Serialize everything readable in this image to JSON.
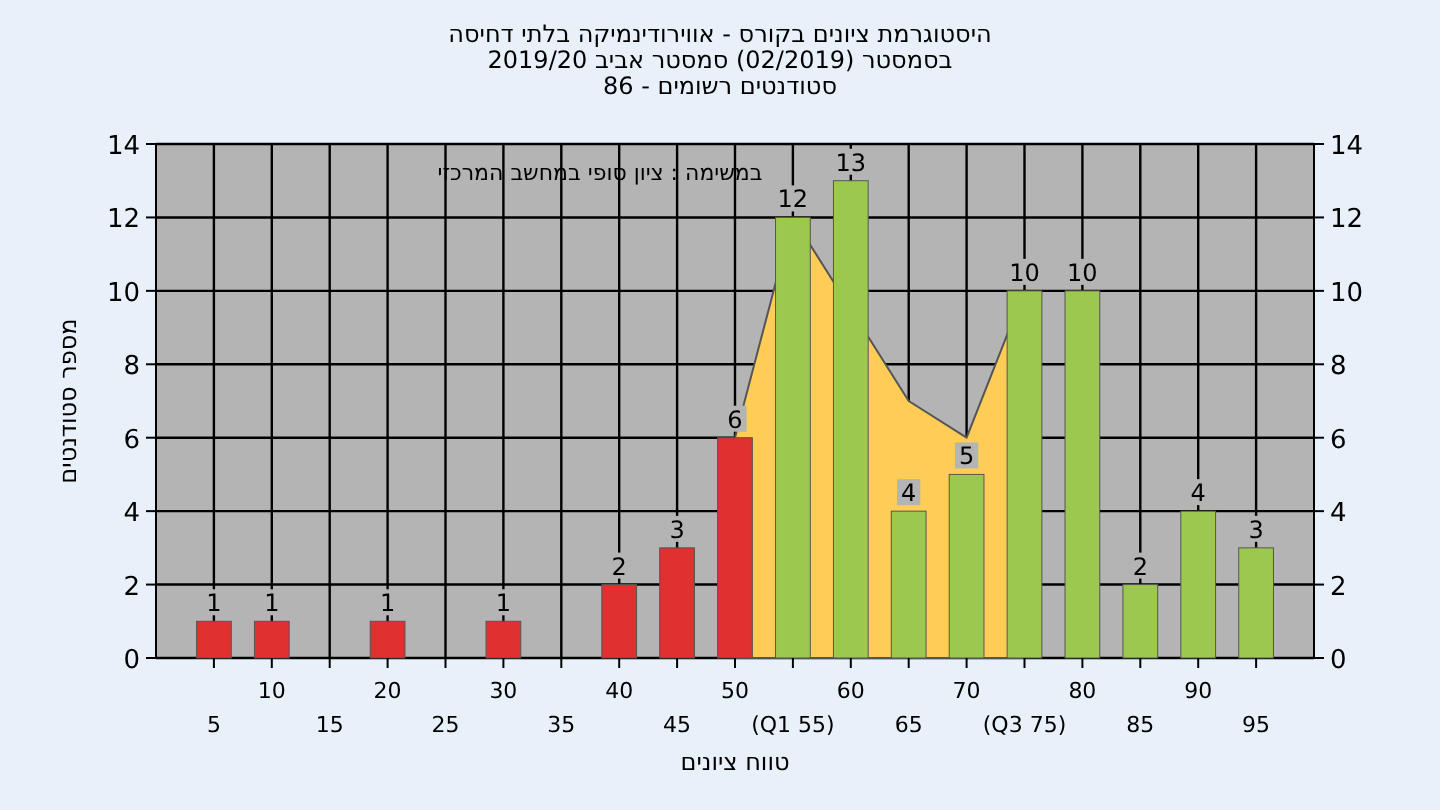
{
  "chart_data": {
    "type": "bar",
    "title": "היסטוגרמת ציונים בקורס - אווירודינמיקה בלתי דחיסה",
    "subtitle": "בסמסטר  (02/2019)  סמסטר אביב 2019/20",
    "annotations": [
      "סטודנטים רשומים - 86",
      "במשימה : ציון סופי במחשב המרכזי"
    ],
    "xlabel": "טווח ציונים",
    "ylabel": "מספר סטודנטים",
    "categories": [
      "5",
      "10",
      "15",
      "20",
      "25",
      "30",
      "35",
      "40",
      "45",
      "50",
      "(Q1 55)",
      "60",
      "65",
      "70",
      "(Q3 75)",
      "80",
      "85",
      "90",
      "95"
    ],
    "series": [
      {
        "type": "area",
        "color": "#ffcc55",
        "values": [
          null,
          null,
          null,
          null,
          null,
          null,
          null,
          null,
          null,
          6,
          12,
          null,
          7,
          6,
          10,
          null,
          null,
          null,
          null
        ]
      },
      {
        "colors": [
          "#e03030",
          "#e03030",
          "#e03030",
          "#e03030",
          "#e03030",
          "#e03030",
          "#e03030",
          "#e03030",
          "#e03030",
          "#e03030",
          "#9cc850",
          "#9cc850",
          "#9cc850",
          "#9cc850",
          "#9cc850",
          "#9cc850",
          "#9cc850",
          "#9cc850",
          "#9cc850"
        ],
        "values": [
          1,
          1,
          0,
          1,
          0,
          1,
          0,
          2,
          3,
          6,
          12,
          13,
          4,
          5,
          10,
          10,
          2,
          4,
          3
        ],
        "value_labels": [
          "1",
          "1",
          null,
          "1",
          null,
          "1",
          null,
          "2",
          "3",
          "6",
          "12",
          "13",
          "4",
          "5",
          "10",
          "10",
          "2",
          "4",
          "3"
        ]
      }
    ],
    "ylim": [
      0,
      14
    ],
    "yticks": [
      0,
      2,
      4,
      6,
      8,
      10,
      12,
      14
    ],
    "y2lim": [
      0,
      14
    ],
    "y2ticks": [
      0,
      2,
      4,
      6,
      8,
      10,
      12,
      14
    ],
    "grid": true
  }
}
